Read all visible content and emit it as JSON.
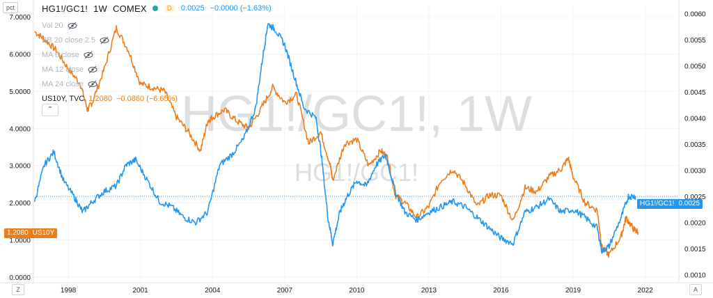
{
  "header": {
    "scale_button": "pct",
    "symbol": "HG1!/GC1!",
    "interval": "1W",
    "exchange": "COMEX",
    "delay_badge": "D",
    "last": "0.0025",
    "change": "−0.0000 (−1.63%)"
  },
  "indicators": [
    {
      "label": "Vol 20"
    },
    {
      "label": "BB 20 close 2.5"
    },
    {
      "label": "MA 6 close"
    },
    {
      "label": "MA 12 close"
    },
    {
      "label": "MA 24 close"
    }
  ],
  "overlay": {
    "symbol": "US10Y, TVC",
    "last": "1.2080",
    "change": "−0.0860 (−6.65%)"
  },
  "watermark": {
    "big": "HG1!/GC1!, 1W",
    "small": "HG1!/GC1!"
  },
  "price_tags": {
    "left_value": "1.2080",
    "left_name": "US10Y",
    "right_name": "HG1!/GC1!",
    "right_value": "0.0025"
  },
  "corner_buttons": {
    "left": "Z",
    "right": "A"
  },
  "colors": {
    "blue": "#2196f3",
    "orange": "#ef7d17",
    "grid": "#f0f3fa"
  },
  "chart_data": {
    "type": "line",
    "x_ticks": [
      "1998",
      "2001",
      "2004",
      "2007",
      "2010",
      "2013",
      "2016",
      "2019",
      "2022"
    ],
    "left_axis": {
      "ticks": [
        "0.0000",
        "1.0000",
        "2.0000",
        "3.0000",
        "4.0000",
        "5.0000",
        "6.0000",
        "7.0000"
      ],
      "range": [
        -0.15,
        7.3
      ]
    },
    "right_axis": {
      "ticks": [
        "0.0010",
        "0.0015",
        "0.0020",
        "0.0025",
        "0.0030",
        "0.0035",
        "0.0040",
        "0.0045",
        "0.0050",
        "0.0055",
        "0.0060"
      ],
      "range": [
        0.00085,
        0.00615
      ]
    },
    "series": [
      {
        "name": "US10Y",
        "axis": "left",
        "color": "#ef7d17",
        "x": [
          1996.6,
          1997.0,
          1997.5,
          1998.0,
          1998.5,
          1998.8,
          1999.0,
          1999.5,
          2000.0,
          2000.5,
          2001.0,
          2001.5,
          2002.0,
          2002.5,
          2003.0,
          2003.5,
          2003.8,
          2004.0,
          2004.5,
          2005.0,
          2005.5,
          2006.0,
          2006.5,
          2007.0,
          2007.5,
          2008.0,
          2008.5,
          2008.9,
          2009.0,
          2009.5,
          2010.0,
          2010.5,
          2011.0,
          2011.3,
          2011.6,
          2012.0,
          2012.5,
          2013.0,
          2013.5,
          2014.0,
          2014.5,
          2015.0,
          2015.5,
          2016.0,
          2016.5,
          2017.0,
          2017.5,
          2018.0,
          2018.5,
          2018.8,
          2019.0,
          2019.5,
          2020.0,
          2020.2,
          2020.5,
          2021.0,
          2021.2,
          2021.5,
          2021.7
        ],
        "y": [
          6.6,
          6.4,
          6.1,
          5.6,
          5.2,
          4.5,
          4.7,
          5.6,
          6.7,
          6.1,
          5.2,
          5.1,
          5.0,
          4.3,
          3.9,
          3.4,
          4.2,
          4.3,
          4.5,
          4.2,
          4.0,
          4.5,
          5.1,
          4.7,
          4.9,
          3.6,
          3.9,
          3.0,
          2.6,
          3.6,
          3.7,
          3.0,
          3.4,
          3.2,
          2.2,
          2.0,
          1.6,
          1.9,
          2.6,
          2.9,
          2.5,
          1.9,
          2.2,
          2.2,
          1.5,
          2.4,
          2.3,
          2.7,
          2.9,
          3.2,
          2.7,
          2.0,
          1.8,
          0.8,
          0.6,
          1.1,
          1.6,
          1.3,
          1.21
        ]
      },
      {
        "name": "HG1!/GC1!",
        "axis": "right",
        "color": "#2196f3",
        "x": [
          1996.6,
          1997.0,
          1997.4,
          1997.8,
          1998.3,
          1998.6,
          1999.0,
          1999.5,
          2000.0,
          2000.4,
          2000.8,
          2001.3,
          2001.8,
          2002.3,
          2002.8,
          2003.3,
          2003.8,
          2004.3,
          2004.8,
          2005.3,
          2005.8,
          2006.1,
          2006.3,
          2006.6,
          2007.0,
          2007.4,
          2007.8,
          2008.3,
          2008.5,
          2008.8,
          2009.0,
          2009.3,
          2009.6,
          2010.0,
          2010.4,
          2010.8,
          2011.2,
          2011.6,
          2012.0,
          2012.5,
          2013.0,
          2013.5,
          2014.0,
          2014.5,
          2015.0,
          2015.5,
          2016.0,
          2016.5,
          2017.0,
          2017.5,
          2018.0,
          2018.5,
          2019.0,
          2019.5,
          2020.0,
          2020.2,
          2020.5,
          2021.0,
          2021.3,
          2021.6
        ],
        "y": [
          0.0024,
          0.0031,
          0.00335,
          0.0028,
          0.00245,
          0.0022,
          0.0024,
          0.0026,
          0.0027,
          0.0031,
          0.0032,
          0.0028,
          0.0024,
          0.0023,
          0.0021,
          0.002,
          0.0022,
          0.0031,
          0.0033,
          0.0036,
          0.0042,
          0.0052,
          0.0058,
          0.0057,
          0.0054,
          0.0048,
          0.0042,
          0.004,
          0.0034,
          0.0021,
          0.0016,
          0.0022,
          0.0025,
          0.0028,
          0.0027,
          0.0031,
          0.0033,
          0.0026,
          0.0022,
          0.00205,
          0.0022,
          0.0023,
          0.0024,
          0.0023,
          0.0021,
          0.0019,
          0.0017,
          0.0016,
          0.0022,
          0.0023,
          0.00245,
          0.0022,
          0.00225,
          0.0021,
          0.0019,
          0.00145,
          0.00155,
          0.0021,
          0.0025,
          0.0025
        ]
      }
    ]
  }
}
